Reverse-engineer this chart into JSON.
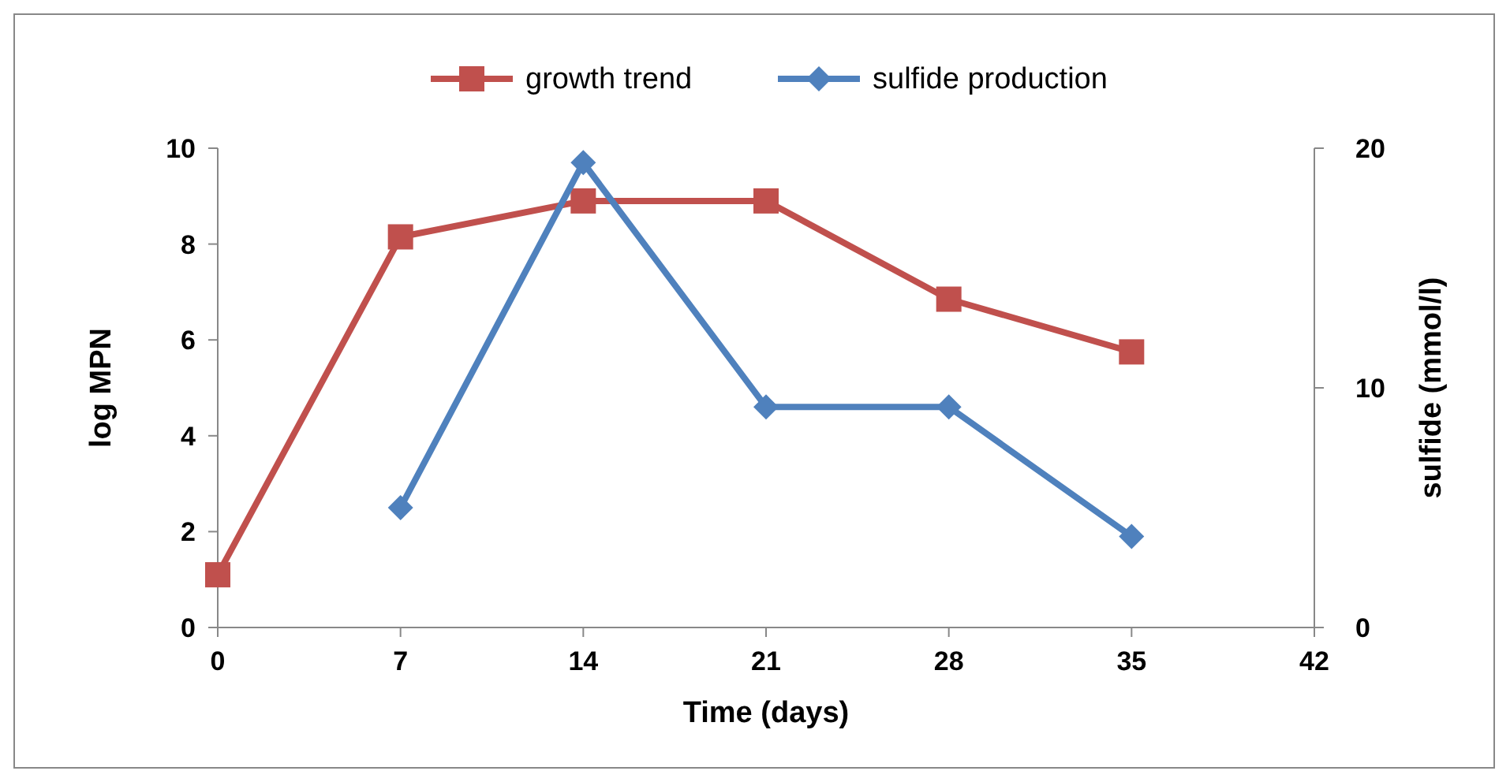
{
  "chart_data": {
    "type": "line",
    "xlabel": "Time (days)",
    "ylabel": "log MPN",
    "y2label": "sulfide (mmol/l)",
    "x": [
      0,
      7,
      14,
      21,
      28,
      35
    ],
    "xlim": [
      0,
      42
    ],
    "xticks": [
      0,
      7,
      14,
      21,
      28,
      35,
      42
    ],
    "ylim": [
      0,
      10
    ],
    "yticks": [
      0,
      2,
      4,
      6,
      8,
      10
    ],
    "y2lim": [
      0,
      20
    ],
    "y2ticks": [
      0,
      10,
      20
    ],
    "grid": false,
    "legend": "top",
    "line_style": "solid",
    "series": [
      {
        "name": "growth trend",
        "color": "#c0504d",
        "marker": "square",
        "values": [
          1.1,
          8.15,
          8.9,
          8.9,
          6.85,
          5.75
        ]
      },
      {
        "name": "sulfide production",
        "color": "#4f81bd",
        "marker": "diamond",
        "axis": "y2",
        "values": [
          null,
          5.0,
          19.4,
          9.2,
          9.2,
          3.8
        ]
      }
    ]
  }
}
